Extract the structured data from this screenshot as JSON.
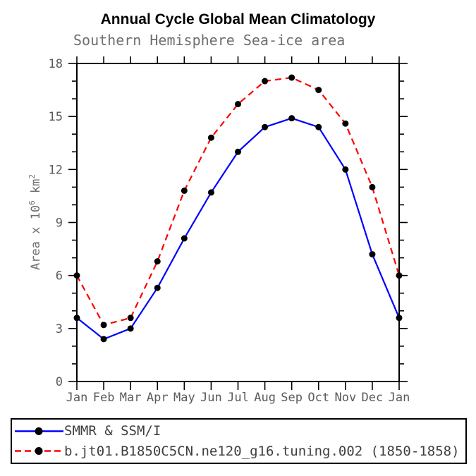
{
  "chart_data": {
    "type": "line",
    "title": "Annual Cycle Global Mean Climatology",
    "subtitle": "Southern Hemisphere Sea-ice area",
    "xlabel": "",
    "ylabel": "Area x 10^6 km^2",
    "ylabel_parts": [
      {
        "t": "Area x 10"
      },
      {
        "sup": "6"
      },
      {
        "t": " km"
      },
      {
        "sup": "2"
      }
    ],
    "categories": [
      "Jan",
      "Feb",
      "Mar",
      "Apr",
      "May",
      "Jun",
      "Jul",
      "Aug",
      "Sep",
      "Oct",
      "Nov",
      "Dec",
      "Jan"
    ],
    "ylim": [
      0,
      18
    ],
    "ytick_major": [
      0,
      3,
      6,
      9,
      12,
      15,
      18
    ],
    "ytick_minor_step": 1,
    "grid": false,
    "legend_position": "bottom-left",
    "series": [
      {
        "name": "SMMR & SSM/I",
        "color": "#0000ff",
        "line_style": "solid",
        "marker": "filled-circle",
        "marker_color": "#000000",
        "values": [
          3.6,
          2.4,
          3.0,
          5.3,
          8.1,
          10.7,
          13.0,
          14.4,
          14.9,
          14.4,
          12.0,
          7.2,
          3.6
        ]
      },
      {
        "name": "b.jt01.B1850C5CN.ne120_g16.tuning.002 (1850-1858)",
        "color": "#ff0000",
        "line_style": "dashed",
        "marker": "filled-circle",
        "marker_color": "#000000",
        "values": [
          6.0,
          3.2,
          3.6,
          6.8,
          10.8,
          13.8,
          15.7,
          17.0,
          17.2,
          16.5,
          14.6,
          11.0,
          6.0
        ]
      }
    ]
  },
  "colors": {
    "background": "#ffffff",
    "axis_line": "#000000",
    "title_text": "#000000",
    "subtitle_text": "#6e6e6e",
    "tick_label_text": "#5a5a5a",
    "legend_text": "#3f3f3f"
  }
}
